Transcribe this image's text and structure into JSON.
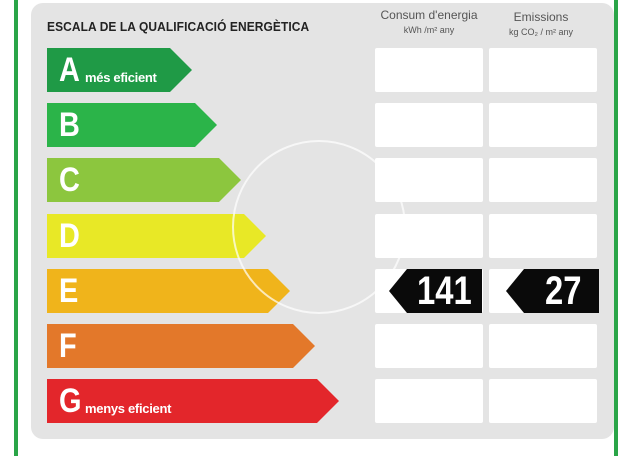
{
  "title": "ESCALA DE LA QUALIFICACIÓ ENERGÈTICA",
  "columns": {
    "consum": {
      "label": "Consum d'energia",
      "unit": "kWh /m² any"
    },
    "emissions": {
      "label": "Emissions",
      "unit": "kg CO₂ / m² any"
    }
  },
  "ratings": [
    {
      "letter": "A",
      "sub": "més eficient",
      "color": "#1f9a46"
    },
    {
      "letter": "B",
      "sub": "",
      "color": "#2bb449"
    },
    {
      "letter": "C",
      "sub": "",
      "color": "#8cc63e"
    },
    {
      "letter": "D",
      "sub": "",
      "color": "#e8e826"
    },
    {
      "letter": "E",
      "sub": "",
      "color": "#f0b41b"
    },
    {
      "letter": "F",
      "sub": "",
      "color": "#e3782a"
    },
    {
      "letter": "G",
      "sub": "menys eficient",
      "color": "#e3262b"
    }
  ],
  "current": {
    "rating": "E",
    "consum": "141",
    "emissions": "27"
  }
}
